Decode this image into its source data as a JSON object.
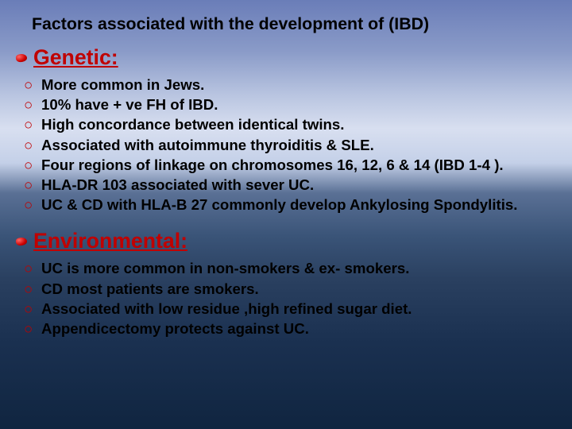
{
  "background": {
    "gradient_stops": [
      "#6a7db8",
      "#8a9bc8",
      "#b8c4e0",
      "#d8dff0",
      "#c4d0e8",
      "#5a7095",
      "#3a5478",
      "#2a4060",
      "#1a3050",
      "#102540"
    ]
  },
  "title": {
    "text": "Factors associated with the development of (IBD)",
    "color": "#000000",
    "fontsize_pt": 16,
    "font_weight": "bold"
  },
  "sections": [
    {
      "heading": "Genetic:",
      "heading_color": "#c00000",
      "heading_fontsize_pt": 20,
      "bullet_color": "#c00000",
      "item_fontsize_pt": 14,
      "item_color": "#000000",
      "items": [
        "More common in Jews.",
        "10% have + ve FH of IBD.",
        "High concordance between identical twins.",
        "Associated with autoimmune thyroiditis & SLE.",
        "Four regions of linkage on chromosomes 16, 12, 6 & 14 (IBD 1-4 ).",
        "HLA-DR 103 associated with sever UC.",
        "UC & CD with HLA-B 27 commonly develop Ankylosing Spondylitis."
      ]
    },
    {
      "heading": "Environmental:",
      "heading_color": "#c00000",
      "heading_fontsize_pt": 20,
      "bullet_color": "#c00000",
      "item_fontsize_pt": 14,
      "item_color": "#000000",
      "items": [
        "UC is more common in non-smokers & ex- smokers.",
        "CD most patients are smokers.",
        "Associated with low residue ,high refined sugar diet.",
        "Appendicectomy protects against UC."
      ]
    }
  ]
}
